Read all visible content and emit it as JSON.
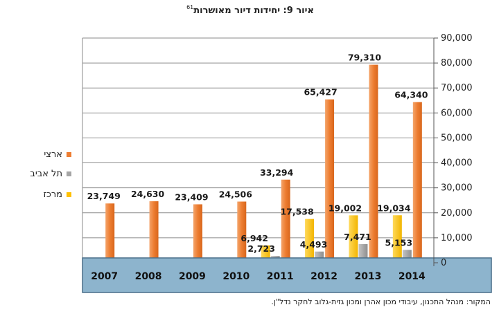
{
  "title": "איור 9: יחידות דיור מאושרות",
  "footnote_ref": "61",
  "source_note": "המקור: מנהל התכנון, עיבודי מכון אהרן ומכון גזית-גלוב לחקר נדל\"ן.",
  "chart_data": {
    "type": "bar",
    "categories": [
      "2007",
      "2008",
      "2009",
      "2010",
      "2011",
      "2012",
      "2013",
      "2014"
    ],
    "series": [
      {
        "name": "ארצי",
        "color": "#ED7D31",
        "values": [
          23749,
          24630,
          23409,
          24506,
          33294,
          65427,
          79310,
          64340
        ],
        "labels": [
          "23,749",
          "24,630",
          "23,409",
          "24,506",
          "33,294",
          "65,427",
          "79,310",
          "64,340"
        ]
      },
      {
        "name": "תל אביב",
        "color": "#A5A5A5",
        "values": [
          null,
          null,
          null,
          null,
          2723,
          4493,
          7471,
          5153
        ],
        "labels": [
          "",
          "",
          "",
          "",
          "2,723",
          "4,493",
          "7,471",
          "5,153"
        ]
      },
      {
        "name": "מרכז",
        "color": "#FFC000",
        "values": [
          null,
          null,
          null,
          null,
          6942,
          17538,
          19002,
          19034
        ],
        "labels": [
          "",
          "",
          "",
          "",
          "6,942",
          "17,538",
          "19,002",
          "19,034"
        ]
      }
    ],
    "y_axis": {
      "min": 0,
      "max": 90000,
      "step": 10000,
      "ticks": [
        "0",
        "10,000",
        "20,000",
        "30,000",
        "40,000",
        "50,000",
        "60,000",
        "70,000",
        "80,000",
        "90,000"
      ],
      "position": "right"
    },
    "legend_position": "left",
    "gridlines": true
  }
}
